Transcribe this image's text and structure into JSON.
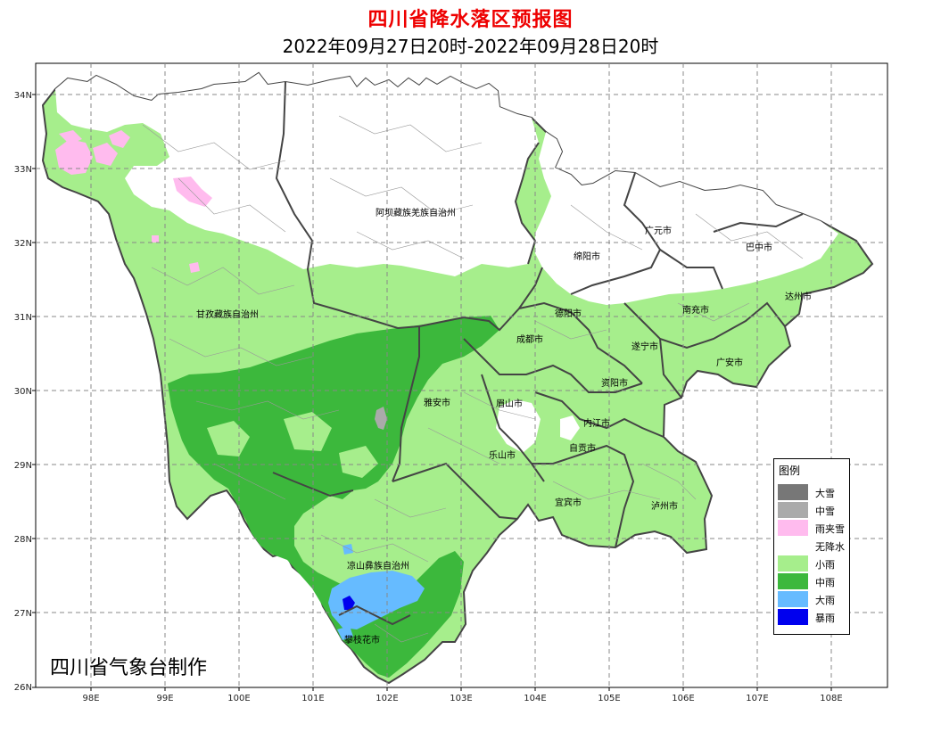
{
  "title": "四川省降水落区预报图",
  "subtitle": "2022年09月27日20时-2022年09月28日20时",
  "credit": "四川省气象台制作",
  "colors": {
    "title": "#ee0000",
    "heavy_snow": "#777777",
    "moderate_snow": "#aaaaaa",
    "sleet": "#ffbbee",
    "no_precip": "#ffffff",
    "light_rain": "#a6ee8c",
    "moderate_rain": "#3cb83c",
    "heavy_rain": "#66bbff",
    "rainstorm": "#0000ee",
    "boundary": "#444444",
    "county_line": "#999999",
    "grid": "#888888"
  },
  "legend": {
    "title": "图例",
    "items": [
      {
        "label": "大雪",
        "color": "#777777"
      },
      {
        "label": "中雪",
        "color": "#aaaaaa"
      },
      {
        "label": "雨夹雪",
        "color": "#ffbbee"
      },
      {
        "label": "无降水",
        "color": "#ffffff"
      },
      {
        "label": "小雨",
        "color": "#a6ee8c"
      },
      {
        "label": "中雨",
        "color": "#3cb83c"
      },
      {
        "label": "大雨",
        "color": "#66bbff"
      },
      {
        "label": "暴雨",
        "color": "#0000ee"
      }
    ]
  },
  "axes": {
    "x_ticks": [
      "98E",
      "99E",
      "100E",
      "101E",
      "102E",
      "103E",
      "104E",
      "105E",
      "106E",
      "107E",
      "108E"
    ],
    "y_ticks": [
      "34N",
      "33N",
      "32N",
      "31N",
      "30N",
      "29N",
      "28N",
      "27N",
      "26N"
    ]
  },
  "cities": [
    {
      "name": "阿坝藏族羌族自治州"
    },
    {
      "name": "甘孜藏族自治州"
    },
    {
      "name": "凉山彝族自治州"
    },
    {
      "name": "广元市"
    },
    {
      "name": "巴中市"
    },
    {
      "name": "绵阳市"
    },
    {
      "name": "达州市"
    },
    {
      "name": "德阳市"
    },
    {
      "name": "南充市"
    },
    {
      "name": "成都市"
    },
    {
      "name": "遂宁市"
    },
    {
      "name": "广安市"
    },
    {
      "name": "资阳市"
    },
    {
      "name": "雅安市"
    },
    {
      "name": "眉山市"
    },
    {
      "name": "内江市"
    },
    {
      "name": "乐山市"
    },
    {
      "name": "自贡市"
    },
    {
      "name": "宜宾市"
    },
    {
      "name": "泸州市"
    },
    {
      "name": "攀枝花市"
    }
  ]
}
